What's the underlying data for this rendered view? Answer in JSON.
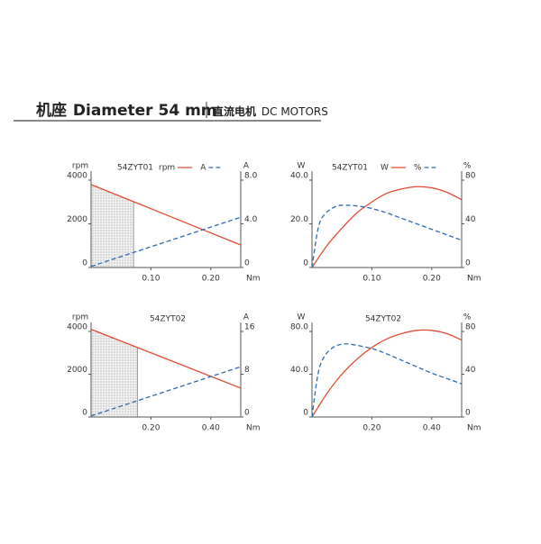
{
  "header": {
    "title_cn": "机座",
    "title": "Diameter 54 mm",
    "subtitle_cn": "直流电机",
    "subtitle": "DC MOTORS"
  },
  "chart_data": [
    {
      "type": "line",
      "title": "54ZYT01",
      "x_label": "Nm",
      "y_label": "rpm",
      "y2_label": "A",
      "xlim": [
        0,
        0.25
      ],
      "xticks": [
        {
          "value": 0.1,
          "label": "0.10"
        },
        {
          "value": 0.2,
          "label": "0.20"
        }
      ],
      "ylim": [
        0,
        4000
      ],
      "yticks": [
        0,
        2000,
        4000
      ],
      "y2lim": [
        0,
        8
      ],
      "y2ticks": [
        0,
        {
          "value": 4,
          "label": "4.0"
        },
        {
          "value": 8,
          "label": "8.0"
        }
      ],
      "legend": true,
      "rated_range": [
        0,
        0.071
      ],
      "series": [
        {
          "name": "rpm",
          "color": "#e34a33",
          "style": "solid",
          "x": [
            0,
            0.25
          ],
          "values": [
            3800,
            1030
          ]
        },
        {
          "name": "A",
          "color": "#2b6cb0",
          "style": "dashed",
          "axis": "y2",
          "x": [
            0,
            0.25
          ],
          "values": [
            0.1,
            4.6
          ]
        }
      ]
    },
    {
      "type": "line",
      "title": "54ZYT01",
      "x_label": "Nm",
      "y_label": "W",
      "y2_label": "%",
      "xlim": [
        0,
        0.25
      ],
      "xticks": [
        {
          "value": 0.1,
          "label": "0.10"
        },
        {
          "value": 0.2,
          "label": "0.20"
        }
      ],
      "ylim": [
        0,
        40
      ],
      "yticks": [
        0,
        {
          "value": 20,
          "label": "20.0"
        },
        {
          "value": 40,
          "label": "40.0"
        }
      ],
      "y2lim": [
        0,
        80
      ],
      "y2ticks": [
        0,
        40,
        80
      ],
      "legend": true,
      "series": [
        {
          "name": "W",
          "color": "#e34a33",
          "style": "solid",
          "x": [
            0,
            0.025,
            0.05,
            0.075,
            0.1,
            0.125,
            0.15,
            0.175,
            0.2,
            0.225,
            0.25
          ],
          "values": [
            0,
            10,
            18,
            25,
            30,
            34,
            36,
            37,
            36.5,
            34.5,
            31
          ]
        },
        {
          "name": "%",
          "color": "#2b6cb0",
          "style": "dashed",
          "axis": "y2",
          "x": [
            0,
            0.01,
            0.02,
            0.04,
            0.06,
            0.08,
            0.1,
            0.125,
            0.15,
            0.175,
            0.2,
            0.225,
            0.25
          ],
          "values": [
            0,
            35,
            48,
            56,
            57,
            56,
            54,
            50,
            45,
            40,
            35,
            30,
            25
          ]
        }
      ]
    },
    {
      "type": "line",
      "title": "54ZYT02",
      "x_label": "Nm",
      "y_label": "rpm",
      "y2_label": "A",
      "xlim": [
        0,
        0.5
      ],
      "xticks": [
        {
          "value": 0.2,
          "label": "0.20"
        },
        {
          "value": 0.4,
          "label": "0.40"
        }
      ],
      "ylim": [
        0,
        4000
      ],
      "yticks": [
        0,
        2000,
        4000
      ],
      "y2lim": [
        0,
        16
      ],
      "y2ticks": [
        0,
        8,
        16
      ],
      "legend": false,
      "rated_range": [
        0,
        0.155
      ],
      "series": [
        {
          "color": "#e34a33",
          "style": "solid",
          "x": [
            0,
            0.5
          ],
          "values": [
            4100,
            1350
          ]
        },
        {
          "color": "#2b6cb0",
          "style": "dashed",
          "axis": "y2",
          "x": [
            0,
            0.5
          ],
          "values": [
            0.2,
            9.4
          ]
        }
      ]
    },
    {
      "type": "line",
      "title": "54ZYT02",
      "x_label": "Nm",
      "y_label": "W",
      "y2_label": "%",
      "xlim": [
        0,
        0.5
      ],
      "xticks": [
        {
          "value": 0.2,
          "label": "0.20"
        },
        {
          "value": 0.4,
          "label": "0.40"
        }
      ],
      "ylim": [
        0,
        80
      ],
      "yticks": [
        0,
        {
          "value": 40,
          "label": "40.0"
        },
        {
          "value": 80,
          "label": "80.0"
        }
      ],
      "y2lim": [
        0,
        80
      ],
      "y2ticks": [
        0,
        40,
        80
      ],
      "legend": false,
      "series": [
        {
          "color": "#e34a33",
          "style": "solid",
          "x": [
            0,
            0.05,
            0.1,
            0.15,
            0.2,
            0.25,
            0.3,
            0.35,
            0.4,
            0.45,
            0.5
          ],
          "values": [
            0,
            22,
            40,
            54,
            65,
            73,
            78,
            81,
            81,
            78,
            72
          ]
        },
        {
          "color": "#2b6cb0",
          "style": "dashed",
          "axis": "y2",
          "x": [
            0,
            0.02,
            0.04,
            0.07,
            0.1,
            0.13,
            0.2,
            0.25,
            0.3,
            0.35,
            0.4,
            0.45,
            0.5
          ],
          "values": [
            0,
            40,
            56,
            65,
            68,
            68,
            64,
            59,
            53,
            47,
            41,
            36,
            31
          ]
        }
      ]
    }
  ]
}
